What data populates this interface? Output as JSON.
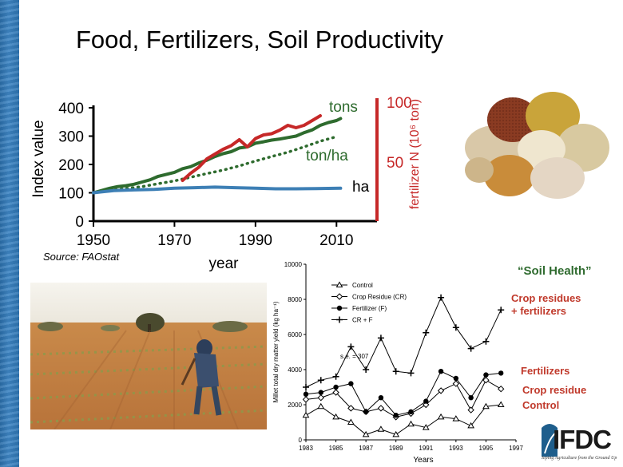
{
  "slide": {
    "title": "Food, Fertilizers, Soil Productivity",
    "source": "Source: FAOstat",
    "soil_health_label": "“Soil Health”",
    "logo_text": "IFDC",
    "logo_tagline": "Ieping Agriculture from the Ground Up",
    "accent_color": "#c0392b",
    "green_color": "#2f6b2f"
  },
  "chart_data": [
    {
      "type": "line",
      "xlabel": "year",
      "ylabel": "Index value",
      "ylabel_right": "fertilizer N (10⁶ ton)",
      "xlim": [
        1950,
        2020
      ],
      "ylim": [
        0,
        400
      ],
      "ylim_right": [
        0,
        100
      ],
      "x_ticks": [
        1950,
        1970,
        1990,
        2010
      ],
      "x_tick_labels": [
        "1950",
        "1970",
        "1990",
        "2010"
      ],
      "y_ticks": [
        0,
        100,
        200,
        300,
        400
      ],
      "y_tick_labels": [
        "0",
        "100",
        "200",
        "300",
        "400"
      ],
      "y_ticks_right": [
        50,
        100
      ],
      "y_tick_labels_right": [
        "50",
        "100"
      ],
      "series": [
        {
          "name": "tons",
          "color": "#2e6b2e",
          "style": "solid",
          "axis": "left",
          "x": [
            1950,
            1952,
            1954,
            1956,
            1958,
            1960,
            1962,
            1964,
            1966,
            1968,
            1970,
            1972,
            1974,
            1976,
            1978,
            1980,
            1982,
            1984,
            1986,
            1988,
            1990,
            1992,
            1994,
            1996,
            1998,
            2000,
            2002,
            2004,
            2006,
            2008,
            2010,
            2011
          ],
          "y": [
            100,
            108,
            116,
            122,
            125,
            130,
            138,
            146,
            158,
            165,
            172,
            185,
            192,
            205,
            215,
            228,
            238,
            245,
            258,
            262,
            275,
            280,
            286,
            290,
            295,
            300,
            312,
            322,
            338,
            348,
            355,
            362
          ]
        },
        {
          "name": "ton/ha",
          "color": "#2e6b2e",
          "style": "dotted",
          "axis": "left",
          "x": [
            1950,
            1954,
            1958,
            1962,
            1966,
            1970,
            1974,
            1978,
            1982,
            1986,
            1990,
            1994,
            1998,
            2002,
            2006,
            2010
          ],
          "y": [
            100,
            108,
            115,
            122,
            132,
            142,
            155,
            168,
            180,
            195,
            212,
            228,
            243,
            262,
            282,
            298
          ]
        },
        {
          "name": "ha",
          "color": "#3d7fb5",
          "style": "solid",
          "axis": "left",
          "x": [
            1950,
            1955,
            1960,
            1965,
            1970,
            1975,
            1980,
            1985,
            1990,
            1995,
            2000,
            2005,
            2011
          ],
          "y": [
            100,
            108,
            110,
            112,
            116,
            118,
            120,
            118,
            116,
            114,
            114,
            115,
            116
          ]
        },
        {
          "name": "fertilizer N",
          "color": "#c62828",
          "style": "solid",
          "axis": "right",
          "x": [
            1972,
            1974,
            1976,
            1978,
            1980,
            1982,
            1984,
            1986,
            1988,
            1990,
            1992,
            1994,
            1996,
            1998,
            2000,
            2002,
            2004,
            2006
          ],
          "y": [
            34,
            40,
            45,
            52,
            56,
            60,
            63,
            68,
            62,
            69,
            72,
            73,
            76,
            80,
            78,
            80,
            84,
            88
          ]
        }
      ]
    },
    {
      "type": "line",
      "xlabel": "Years",
      "ylabel": "Millet total dry matter yield (kg ha⁻¹)",
      "xlim": [
        1983,
        1997
      ],
      "ylim": [
        0,
        10000
      ],
      "x_ticks": [
        1983,
        1985,
        1987,
        1989,
        1991,
        1993,
        1995,
        1997
      ],
      "x_tick_labels": [
        "1983",
        "1985",
        "1987",
        "1989",
        "1991",
        "1993",
        "1995",
        "1997"
      ],
      "y_ticks": [
        0,
        2000,
        4000,
        6000,
        8000,
        10000
      ],
      "y_tick_labels": [
        "0",
        "2000",
        "4000",
        "6000",
        "8000",
        "10000"
      ],
      "annotation": "s.e. = 307",
      "legend": [
        "Control",
        "Crop Residue (CR)",
        "Fertilizer (F)",
        "CR + F"
      ],
      "legend_position": "top-left",
      "series": [
        {
          "name": "Control",
          "marker": "triangle",
          "x": [
            1983,
            1984,
            1985,
            1986,
            1987,
            1988,
            1989,
            1990,
            1991,
            1992,
            1993,
            1994,
            1995,
            1996
          ],
          "y": [
            1400,
            1900,
            1300,
            1000,
            300,
            600,
            300,
            900,
            700,
            1300,
            1200,
            800,
            1900,
            2000
          ]
        },
        {
          "name": "Crop Residue (CR)",
          "marker": "diamond",
          "x": [
            1983,
            1984,
            1985,
            1986,
            1987,
            1988,
            1989,
            1990,
            1991,
            1992,
            1993,
            1994,
            1995,
            1996
          ],
          "y": [
            2300,
            2400,
            2700,
            1800,
            1600,
            1800,
            1300,
            1500,
            2000,
            2800,
            3200,
            1700,
            3400,
            2900
          ]
        },
        {
          "name": "Fertilizer (F)",
          "marker": "circle",
          "x": [
            1983,
            1984,
            1985,
            1986,
            1987,
            1988,
            1989,
            1990,
            1991,
            1992,
            1993,
            1994,
            1995,
            1996
          ],
          "y": [
            2600,
            2700,
            3000,
            3200,
            1600,
            2400,
            1400,
            1600,
            2200,
            3900,
            3500,
            2400,
            3700,
            3800
          ]
        },
        {
          "name": "CR + F",
          "marker": "plus",
          "x": [
            1983,
            1984,
            1985,
            1986,
            1987,
            1988,
            1989,
            1990,
            1991,
            1992,
            1993,
            1994,
            1995,
            1996
          ],
          "y": [
            3000,
            3400,
            3600,
            5300,
            4000,
            5800,
            3900,
            3800,
            6100,
            8100,
            6400,
            5200,
            5600,
            7400
          ]
        }
      ],
      "side_labels": [
        "Crop residues\n+ fertilizers",
        "Fertilizers",
        "Crop residue",
        "Control"
      ]
    }
  ]
}
